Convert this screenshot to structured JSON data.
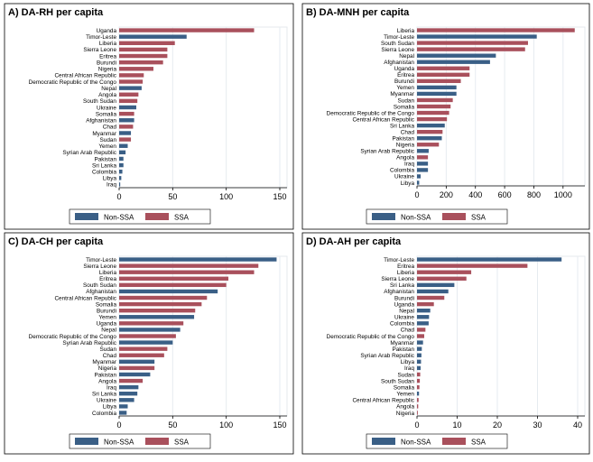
{
  "chart_data": [
    {
      "type": "bar",
      "title": "A) DA-RH per capita",
      "xlim": [
        0,
        150
      ],
      "xticks": [
        0,
        50,
        100,
        150
      ],
      "legend": {
        "placement": "bottom",
        "entries": [
          "Non-SSA",
          "SSA"
        ]
      },
      "colors": {
        "Non-SSA": "#3a5f86",
        "SSA": "#a9505c"
      },
      "categories": [
        "Uganda",
        "Timor-Leste",
        "Liberia",
        "Sierra Leone",
        "Eritrea",
        "Burundi",
        "Nigeria",
        "Central African Republic",
        "Democratic Republic of the Congo",
        "Nepal",
        "Angola",
        "South Sudan",
        "Ukraine",
        "Somalia",
        "Afghanistan",
        "Chad",
        "Myanmar",
        "Sudan",
        "Yemen",
        "Syrian Arab Republic",
        "Pakistan",
        "Sri Lanka",
        "Colombia",
        "Libya",
        "Iraq"
      ],
      "groups": [
        "SSA",
        "Non-SSA",
        "SSA",
        "SSA",
        "SSA",
        "SSA",
        "SSA",
        "SSA",
        "SSA",
        "Non-SSA",
        "SSA",
        "SSA",
        "Non-SSA",
        "SSA",
        "Non-SSA",
        "SSA",
        "Non-SSA",
        "SSA",
        "Non-SSA",
        "Non-SSA",
        "Non-SSA",
        "Non-SSA",
        "Non-SSA",
        "Non-SSA",
        "Non-SSA"
      ],
      "values": [
        126,
        63,
        52,
        45,
        45,
        41,
        32,
        23,
        22,
        21,
        18,
        17,
        16,
        14,
        14,
        13,
        11,
        11,
        8,
        6,
        4,
        4,
        3,
        2,
        1
      ]
    },
    {
      "type": "bar",
      "title": "B) DA-MNH per capita",
      "xlim": [
        0,
        1100
      ],
      "xticks": [
        0,
        200,
        400,
        600,
        800,
        1000
      ],
      "legend": {
        "placement": "bottom",
        "entries": [
          "Non-SSA",
          "SSA"
        ]
      },
      "colors": {
        "Non-SSA": "#3a5f86",
        "SSA": "#a9505c"
      },
      "categories": [
        "Liberia",
        "Timor-Leste",
        "South Sudan",
        "Sierra Leone",
        "Nepal",
        "Afghanistan",
        "Uganda",
        "Eritrea",
        "Burundi",
        "Yemen",
        "Myanmar",
        "Sudan",
        "Somalia",
        "Democratic Republic of the Congo",
        "Central African Republic",
        "Sri Lanka",
        "Chad",
        "Pakistan",
        "Nigeria",
        "Syrian Arab Republic",
        "Angola",
        "Iraq",
        "Colombia",
        "Ukraine",
        "Libya"
      ],
      "groups": [
        "SSA",
        "Non-SSA",
        "SSA",
        "SSA",
        "Non-SSA",
        "Non-SSA",
        "SSA",
        "SSA",
        "SSA",
        "Non-SSA",
        "Non-SSA",
        "SSA",
        "SSA",
        "SSA",
        "SSA",
        "Non-SSA",
        "SSA",
        "Non-SSA",
        "SSA",
        "Non-SSA",
        "SSA",
        "Non-SSA",
        "Non-SSA",
        "Non-SSA",
        "Non-SSA"
      ],
      "values": [
        1080,
        820,
        760,
        740,
        540,
        500,
        360,
        360,
        300,
        270,
        270,
        245,
        230,
        220,
        205,
        190,
        175,
        170,
        150,
        80,
        75,
        75,
        75,
        25,
        15
      ]
    },
    {
      "type": "bar",
      "title": "C) DA-CH per capita",
      "xlim": [
        0,
        150
      ],
      "xticks": [
        0,
        50,
        100,
        150
      ],
      "legend": {
        "placement": "bottom",
        "entries": [
          "Non-SSA",
          "SSA"
        ]
      },
      "colors": {
        "Non-SSA": "#3a5f86",
        "SSA": "#a9505c"
      },
      "categories": [
        "Timor-Leste",
        "Sierra Leone",
        "Liberia",
        "Eritrea",
        "South Sudan",
        "Afghanistan",
        "Central African Republic",
        "Somalia",
        "Burundi",
        "Yemen",
        "Uganda",
        "Nepal",
        "Democratic Republic of the Congo",
        "Syrian Arab Republic",
        "Sudan",
        "Chad",
        "Myanmar",
        "Nigeria",
        "Pakistan",
        "Angola",
        "Iraq",
        "Sri Lanka",
        "Ukraine",
        "Libya",
        "Colombia"
      ],
      "groups": [
        "Non-SSA",
        "SSA",
        "SSA",
        "SSA",
        "SSA",
        "Non-SSA",
        "SSA",
        "SSA",
        "SSA",
        "Non-SSA",
        "SSA",
        "Non-SSA",
        "SSA",
        "Non-SSA",
        "SSA",
        "SSA",
        "Non-SSA",
        "SSA",
        "Non-SSA",
        "SSA",
        "Non-SSA",
        "Non-SSA",
        "Non-SSA",
        "Non-SSA",
        "Non-SSA"
      ],
      "values": [
        147,
        130,
        126,
        102,
        100,
        92,
        82,
        77,
        71,
        70,
        60,
        57,
        53,
        50,
        45,
        42,
        33,
        33,
        29,
        22,
        18,
        17,
        14,
        8,
        7
      ]
    },
    {
      "type": "bar",
      "title": "D) DA-AH per capita",
      "xlim": [
        0,
        40
      ],
      "xticks": [
        0,
        10,
        20,
        30,
        40
      ],
      "legend": {
        "placement": "bottom",
        "entries": [
          "Non-SSA",
          "SSA"
        ]
      },
      "colors": {
        "Non-SSA": "#3a5f86",
        "SSA": "#a9505c"
      },
      "categories": [
        "Timor-Leste",
        "Eritrea",
        "Liberia",
        "Sierra Leone",
        "Sri Lanka",
        "Afghanistan",
        "Burundi",
        "Uganda",
        "Nepal",
        "Ukraine",
        "Colombia",
        "Chad",
        "Democratic Republic of the Congo",
        "Myanmar",
        "Pakistan",
        "Syrian Arab Republic",
        "Libya",
        "Iraq",
        "Sudan",
        "South Sudan",
        "Somalia",
        "Yemen",
        "Central African Republic",
        "Angola",
        "Nigeria"
      ],
      "groups": [
        "Non-SSA",
        "SSA",
        "SSA",
        "SSA",
        "Non-SSA",
        "Non-SSA",
        "SSA",
        "SSA",
        "Non-SSA",
        "Non-SSA",
        "Non-SSA",
        "SSA",
        "SSA",
        "Non-SSA",
        "Non-SSA",
        "Non-SSA",
        "Non-SSA",
        "Non-SSA",
        "SSA",
        "SSA",
        "SSA",
        "Non-SSA",
        "SSA",
        "SSA",
        "SSA"
      ],
      "values": [
        36,
        27.5,
        13.5,
        12.3,
        9.3,
        7.8,
        6.8,
        4.2,
        3.3,
        3.0,
        2.9,
        2.1,
        1.8,
        1.5,
        1.2,
        1.1,
        1.0,
        0.9,
        0.8,
        0.7,
        0.6,
        0.5,
        0.4,
        0.3,
        0.2
      ]
    }
  ]
}
